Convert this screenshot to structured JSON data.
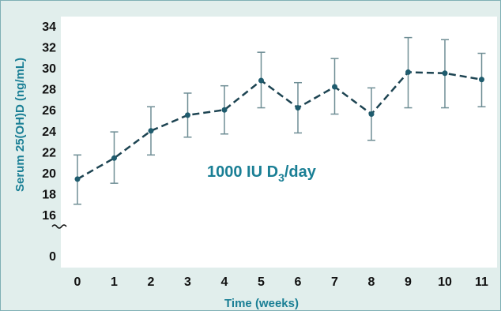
{
  "chart_data": {
    "type": "line",
    "xlabel": "Time (weeks)",
    "ylabel": "Serum 25(OH)D (ng/mL)",
    "annotation": {
      "prefix": "1000 IU D",
      "subscript": "3",
      "suffix": "/day"
    },
    "x": [
      0,
      1,
      2,
      3,
      4,
      5,
      6,
      7,
      8,
      9,
      10,
      11
    ],
    "x_tick_labels": [
      "0",
      "1",
      "2",
      "3",
      "4",
      "5",
      "6",
      "7",
      "8",
      "9",
      "10",
      "11"
    ],
    "y_tick_labels": [
      "34",
      "32",
      "30",
      "28",
      "26",
      "24",
      "22",
      "20",
      "18",
      "16",
      "0"
    ],
    "y_break": {
      "from": 0,
      "to": 16
    },
    "ylim": [
      16,
      34
    ],
    "series": [
      {
        "values": [
          19.4,
          21.4,
          24.0,
          25.5,
          26.0,
          28.8,
          26.2,
          28.2,
          25.6,
          29.6,
          29.5,
          28.9
        ],
        "error_low": [
          17.0,
          19.0,
          21.7,
          23.4,
          23.7,
          26.2,
          23.8,
          25.6,
          23.1,
          26.2,
          26.2,
          26.3
        ],
        "error_high": [
          21.7,
          23.9,
          26.3,
          27.6,
          28.3,
          31.5,
          28.6,
          30.9,
          28.1,
          32.9,
          32.7,
          31.4
        ]
      }
    ],
    "grid": false,
    "line_style": "dashed",
    "colors": {
      "line": "#1d4452",
      "marker": "#1f5c6e",
      "error_bar": "#6f8e95",
      "text_accent": "#1a7f95",
      "plot_bg": "#ffffff",
      "frame_bg": "#e1eeec"
    }
  }
}
